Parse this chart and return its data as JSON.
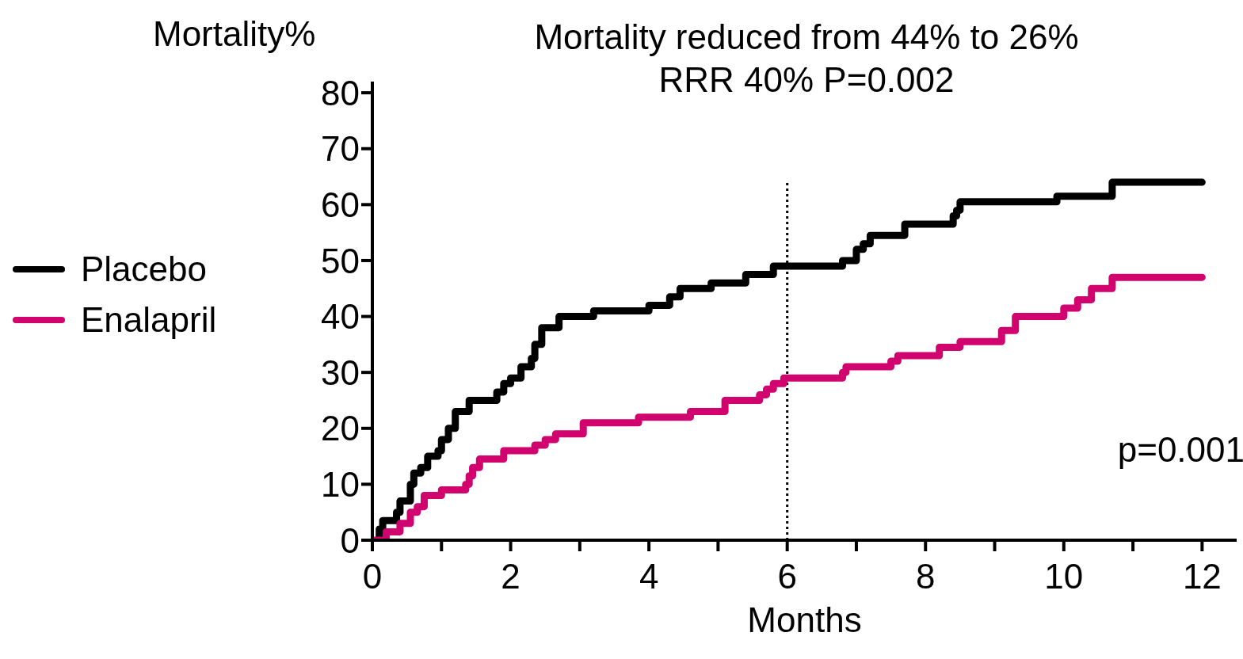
{
  "chart_data": {
    "type": "step",
    "title": "Mortality reduced from 44% to 26%",
    "subtitle": "RRR 40% P=0.002",
    "xlabel": "Months",
    "ylabel": "Mortality%",
    "xlim": [
      0,
      12.5
    ],
    "xticks": [
      0,
      {
        "value": 1,
        "label": null
      },
      2,
      {
        "value": 3,
        "label": null
      },
      4,
      {
        "value": 5,
        "label": null
      },
      6,
      {
        "value": 7,
        "label": null
      },
      8,
      {
        "value": 9,
        "label": null
      },
      10,
      {
        "value": 11,
        "label": null
      },
      12
    ],
    "ylim": [
      0,
      82
    ],
    "yticks": [
      0,
      10,
      20,
      30,
      40,
      50,
      60,
      70,
      80
    ],
    "grid": false,
    "legend": "left",
    "marker": "none",
    "line_style": "solid",
    "ref_lines": [
      {
        "axis": "x",
        "value": 6,
        "line_style": "dotted",
        "color": "#000000"
      }
    ],
    "annotations": [
      "p=0.001"
    ],
    "series": [
      {
        "name": "Placebo",
        "color": "#000000",
        "x": [
          0.05,
          0.1,
          0.15,
          0.35,
          0.4,
          0.55,
          0.6,
          0.7,
          0.8,
          0.95,
          1.0,
          1.1,
          1.2,
          1.4,
          1.8,
          1.9,
          2.0,
          2.15,
          2.3,
          2.35,
          2.45,
          2.7,
          3.2,
          4.0,
          4.3,
          4.45,
          4.9,
          5.4,
          5.8,
          6.8,
          7.0,
          7.1,
          7.2,
          7.7,
          8.4,
          8.45,
          8.5,
          9.9,
          10.7,
          12
        ],
        "values": [
          0,
          2,
          3.5,
          5,
          7,
          10,
          12,
          13,
          15,
          16,
          18,
          20,
          23,
          25,
          26.5,
          28,
          29,
          31,
          32.5,
          35,
          38,
          40,
          41,
          42,
          43.5,
          45,
          46,
          47.5,
          49,
          50,
          52,
          53,
          54.5,
          56.5,
          58,
          59,
          60.5,
          61.5,
          64,
          64
        ]
      },
      {
        "name": "Enalapril",
        "color": "#d0036f",
        "x": [
          0.05,
          0.2,
          0.4,
          0.55,
          0.65,
          0.75,
          1.0,
          1.35,
          1.4,
          1.45,
          1.55,
          1.9,
          2.35,
          2.5,
          2.65,
          3.05,
          3.85,
          4.6,
          5.1,
          5.6,
          5.7,
          5.8,
          5.95,
          6.8,
          6.85,
          7.5,
          7.6,
          8.2,
          8.5,
          9.1,
          9.3,
          10.0,
          10.2,
          10.4,
          10.7,
          12
        ],
        "values": [
          0,
          1.5,
          3,
          5,
          6,
          8,
          9,
          10,
          11.5,
          13,
          14.5,
          16,
          17,
          18,
          19,
          21,
          22,
          23,
          25,
          26,
          27,
          28,
          29,
          30,
          31,
          32,
          33,
          34.5,
          35.5,
          37.5,
          40,
          41.5,
          43,
          45,
          47,
          47
        ]
      }
    ]
  }
}
